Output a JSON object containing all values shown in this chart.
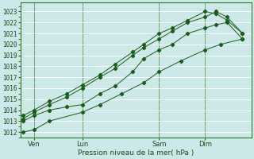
{
  "xlabel": "Pression niveau de la mer( hPa )",
  "bg_color": "#cce8e8",
  "grid_color_major": "#add8d8",
  "grid_color_minor": "#bbdddd",
  "line_color": "#1a5c1a",
  "ylim": [
    1011.5,
    1023.8
  ],
  "yticks": [
    1012,
    1013,
    1014,
    1015,
    1016,
    1017,
    1018,
    1019,
    1020,
    1021,
    1022,
    1023
  ],
  "xtick_labels": [
    "Ven",
    "Lun",
    "Sam",
    "Dim"
  ],
  "xtick_positions": [
    0.05,
    0.27,
    0.62,
    0.83
  ],
  "vline_positions": [
    0.05,
    0.27,
    0.62,
    0.83
  ],
  "series": [
    {
      "x": [
        0.0,
        0.05,
        0.12,
        0.27,
        0.35,
        0.45,
        0.55,
        0.62,
        0.72,
        0.83,
        0.9,
        1.0
      ],
      "y": [
        1012.0,
        1012.2,
        1013.0,
        1013.8,
        1014.5,
        1015.5,
        1016.5,
        1017.5,
        1018.5,
        1019.5,
        1020.0,
        1020.5
      ]
    },
    {
      "x": [
        0.0,
        0.05,
        0.12,
        0.2,
        0.27,
        0.35,
        0.42,
        0.5,
        0.55,
        0.62,
        0.68,
        0.75,
        0.83,
        0.88,
        0.93,
        1.0
      ],
      "y": [
        1013.0,
        1013.5,
        1014.0,
        1014.3,
        1014.5,
        1015.5,
        1016.2,
        1017.5,
        1018.7,
        1019.5,
        1020.0,
        1021.0,
        1021.5,
        1021.8,
        1022.0,
        1020.5
      ]
    },
    {
      "x": [
        0.0,
        0.05,
        0.12,
        0.2,
        0.27,
        0.35,
        0.42,
        0.5,
        0.55,
        0.62,
        0.68,
        0.75,
        0.83,
        0.88,
        0.93,
        1.0
      ],
      "y": [
        1013.2,
        1013.8,
        1014.5,
        1015.2,
        1016.0,
        1017.0,
        1017.8,
        1019.0,
        1019.7,
        1020.5,
        1021.2,
        1022.0,
        1022.5,
        1023.0,
        1022.5,
        1021.0
      ]
    },
    {
      "x": [
        0.0,
        0.05,
        0.12,
        0.2,
        0.27,
        0.35,
        0.42,
        0.5,
        0.55,
        0.62,
        0.68,
        0.75,
        0.83,
        0.88,
        0.93,
        1.0
      ],
      "y": [
        1013.5,
        1014.0,
        1014.8,
        1015.5,
        1016.3,
        1017.2,
        1018.2,
        1019.3,
        1020.0,
        1021.0,
        1021.5,
        1022.2,
        1023.0,
        1022.8,
        1022.2,
        1021.0
      ]
    }
  ]
}
